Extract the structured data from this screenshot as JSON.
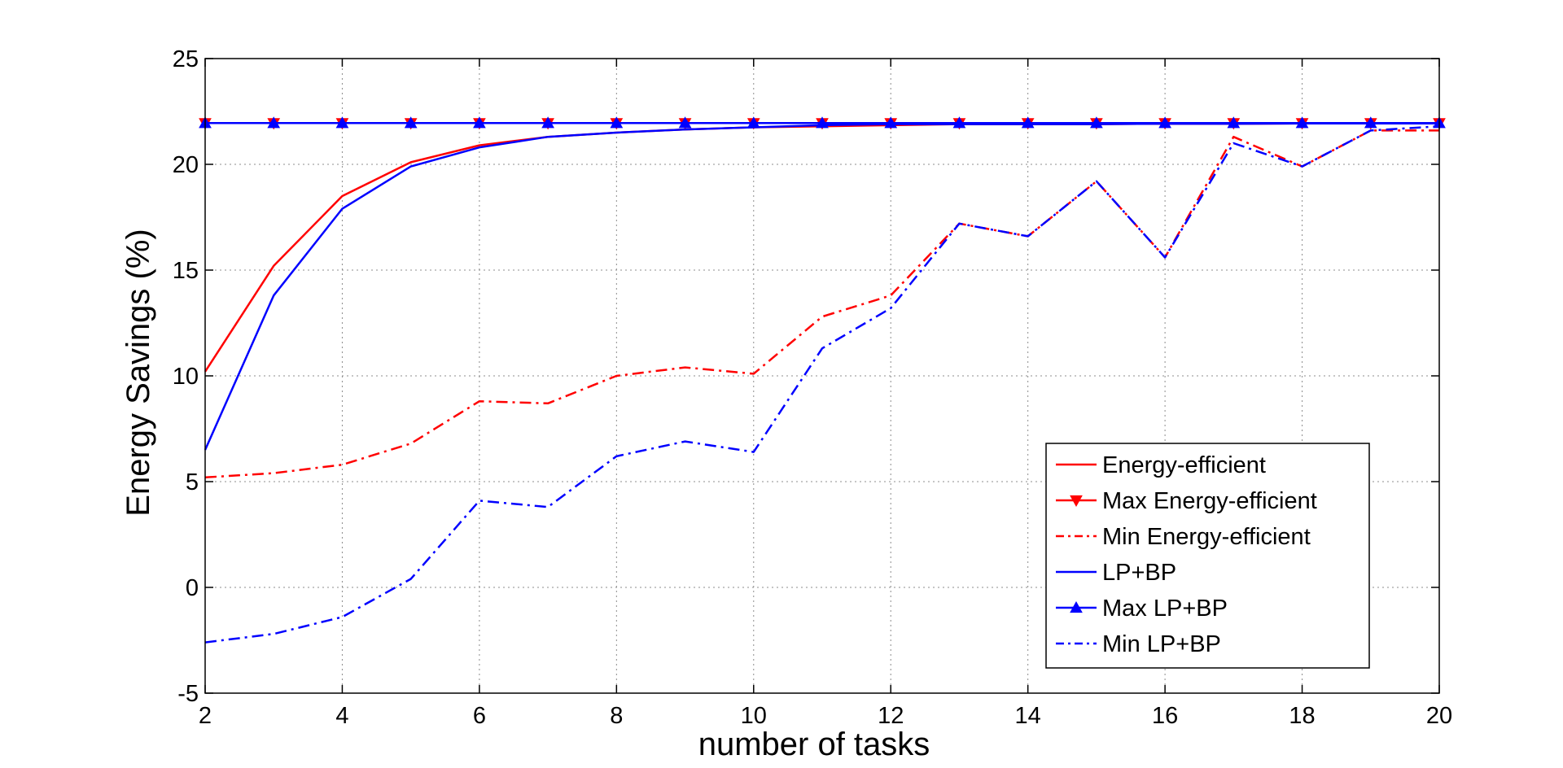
{
  "chart_data": {
    "type": "line",
    "title": "",
    "xlabel": "number of tasks",
    "ylabel": "Energy Savings (%)",
    "xlim": [
      2,
      20
    ],
    "ylim": [
      -5,
      25
    ],
    "xticks": [
      2,
      4,
      6,
      8,
      10,
      12,
      14,
      16,
      18,
      20
    ],
    "yticks": [
      -5,
      0,
      5,
      10,
      15,
      20,
      25
    ],
    "x": [
      2,
      3,
      4,
      5,
      6,
      7,
      8,
      9,
      10,
      11,
      12,
      13,
      14,
      15,
      16,
      17,
      18,
      19,
      20
    ],
    "grid": true,
    "legend_position": "bottom-right",
    "series": [
      {
        "name": "Energy-efficient",
        "color": "#ff0000",
        "dash": "solid",
        "marker": "none",
        "values": [
          10.2,
          15.2,
          18.5,
          20.1,
          20.9,
          21.3,
          21.5,
          21.65,
          21.75,
          21.8,
          21.85,
          21.9,
          21.9,
          21.9,
          21.92,
          21.92,
          21.93,
          21.93,
          21.93
        ]
      },
      {
        "name": "Max Energy-efficient",
        "color": "#ff0000",
        "dash": "solid",
        "marker": "triangle-down",
        "values": [
          21.95,
          21.95,
          21.95,
          21.95,
          21.95,
          21.95,
          21.95,
          21.95,
          21.95,
          21.95,
          21.95,
          21.95,
          21.95,
          21.95,
          21.95,
          21.95,
          21.95,
          21.95,
          21.95
        ]
      },
      {
        "name": "Min Energy-efficient",
        "color": "#ff0000",
        "dash": "dashdot",
        "marker": "none",
        "values": [
          5.2,
          5.4,
          5.8,
          6.8,
          8.8,
          8.7,
          10.0,
          10.4,
          10.1,
          12.8,
          13.8,
          17.2,
          16.6,
          19.2,
          15.6,
          21.3,
          19.9,
          21.6,
          21.6
        ]
      },
      {
        "name": "LP+BP",
        "color": "#0000ff",
        "dash": "solid",
        "marker": "none",
        "values": [
          6.5,
          13.8,
          17.9,
          19.9,
          20.8,
          21.3,
          21.5,
          21.65,
          21.75,
          21.85,
          21.9,
          21.9,
          21.9,
          21.9,
          21.92,
          21.92,
          21.93,
          21.93,
          21.93
        ]
      },
      {
        "name": "Max LP+BP",
        "color": "#0000ff",
        "dash": "solid",
        "marker": "triangle-up",
        "values": [
          21.95,
          21.95,
          21.95,
          21.95,
          21.95,
          21.95,
          21.95,
          21.95,
          21.95,
          21.95,
          21.95,
          21.95,
          21.95,
          21.95,
          21.95,
          21.95,
          21.95,
          21.95,
          21.95
        ]
      },
      {
        "name": "Min LP+BP",
        "color": "#0000ff",
        "dash": "dashdot",
        "marker": "none",
        "values": [
          -2.6,
          -2.2,
          -1.4,
          0.4,
          4.1,
          3.8,
          6.2,
          6.9,
          6.4,
          11.3,
          13.2,
          17.2,
          16.6,
          19.2,
          15.6,
          21.0,
          19.9,
          21.6,
          21.8
        ]
      }
    ]
  }
}
